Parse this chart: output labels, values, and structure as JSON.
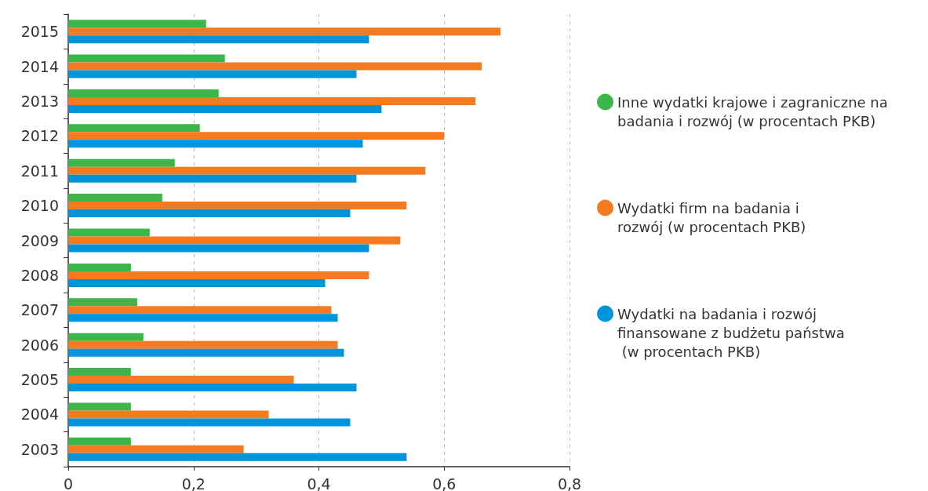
{
  "chart_data": {
    "type": "bar",
    "orientation": "horizontal",
    "categories": [
      "2015",
      "2014",
      "2013",
      "2012",
      "2011",
      "2010",
      "2009",
      "2008",
      "2007",
      "2006",
      "2005",
      "2004",
      "2003"
    ],
    "series": [
      {
        "name": "Inne wydatki krajowe i zagraniczne na badania i rozwój (w procentach PKB)",
        "color": "#3cb54a",
        "values": [
          0.22,
          0.25,
          0.24,
          0.21,
          0.17,
          0.15,
          0.13,
          0.1,
          0.11,
          0.12,
          0.1,
          0.1,
          0.1
        ]
      },
      {
        "name": "Wydatki firm na badania i rozwój (w procentach PKB)",
        "color": "#f47b20",
        "values": [
          0.69,
          0.66,
          0.65,
          0.6,
          0.57,
          0.54,
          0.53,
          0.48,
          0.42,
          0.43,
          0.36,
          0.32,
          0.28
        ]
      },
      {
        "name": "Wydatki na badania i rozwój finansowane z budżetu państwa (w procentach PKB)",
        "color": "#0095da",
        "values": [
          0.48,
          0.46,
          0.5,
          0.47,
          0.46,
          0.45,
          0.48,
          0.41,
          0.43,
          0.44,
          0.46,
          0.45,
          0.54
        ]
      }
    ],
    "xlim": [
      0,
      0.8
    ],
    "xticks": [
      0,
      {
        "value": 0.2,
        "label": "0,2"
      },
      {
        "value": 0.4,
        "label": "0,4"
      },
      {
        "value": 0.6,
        "label": "0,6"
      },
      {
        "value": 0.8,
        "label": "0,8"
      }
    ],
    "grid": "x",
    "legend": "right"
  }
}
